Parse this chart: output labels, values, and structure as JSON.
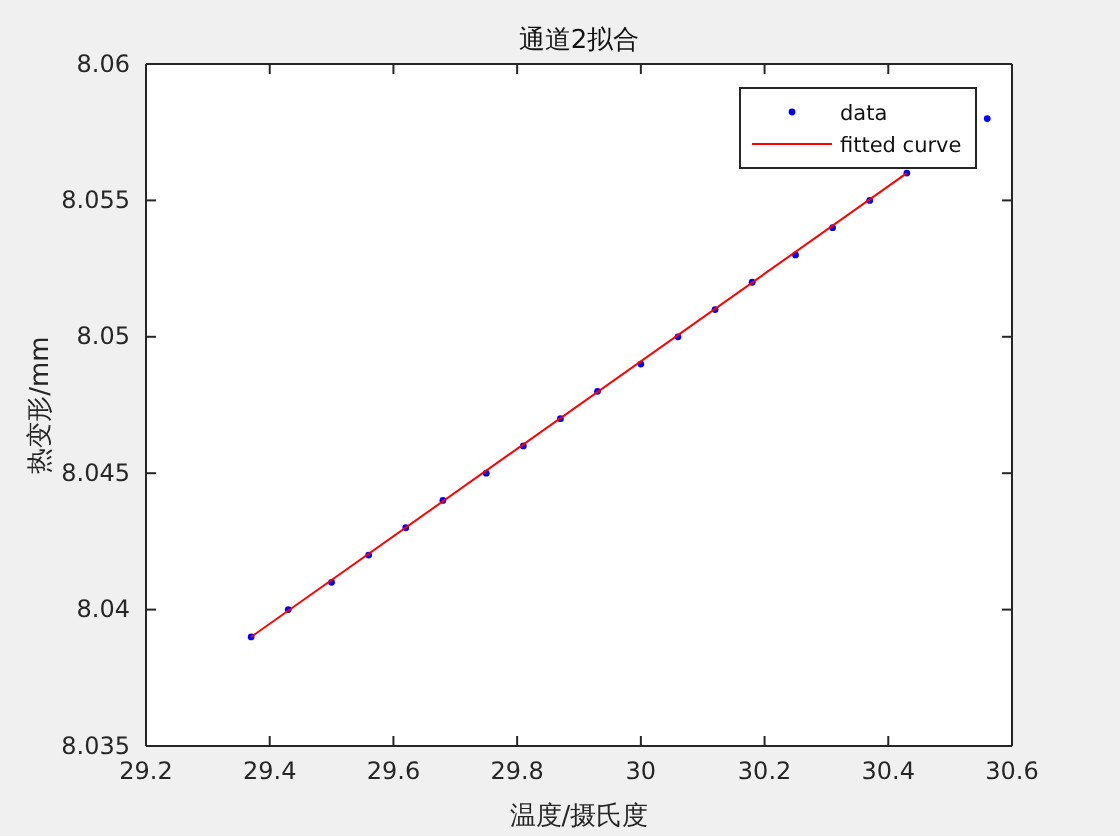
{
  "chart_data": {
    "type": "scatter",
    "title": "通道2拟合",
    "xlabel": "温度/摄氏度",
    "ylabel": "热变形/mm",
    "xlim": [
      29.2,
      30.6
    ],
    "xticks": [
      29.2,
      29.4,
      29.6,
      29.8,
      30,
      30.2,
      30.4,
      30.6
    ],
    "ylim": [
      8.035,
      8.06
    ],
    "yticks": [
      8.035,
      8.04,
      8.045,
      8.05,
      8.055,
      8.06
    ],
    "grid": false,
    "legend": "top right",
    "series": [
      {
        "name": "data",
        "marker": "circle",
        "color": "#0000ff",
        "x": [
          29.37,
          29.43,
          29.5,
          29.56,
          29.62,
          29.68,
          29.75,
          29.81,
          29.87,
          29.93,
          30,
          30.06,
          30.12,
          30.18,
          30.25,
          30.31,
          30.37,
          30.43,
          30.5,
          30.56
        ],
        "values": [
          8.039,
          8.04,
          8.041,
          8.042,
          8.043,
          8.044,
          8.045,
          8.046,
          8.047,
          8.048,
          8.049,
          8.05,
          8.051,
          8.052,
          8.053,
          8.054,
          8.055,
          8.056,
          null,
          8.058
        ]
      },
      {
        "name": "fitted curve",
        "type": "line",
        "marker": "none",
        "color": "#ff0000",
        "x": [
          29.37,
          30.43
        ],
        "values": [
          8.039,
          8.056
        ]
      }
    ]
  }
}
